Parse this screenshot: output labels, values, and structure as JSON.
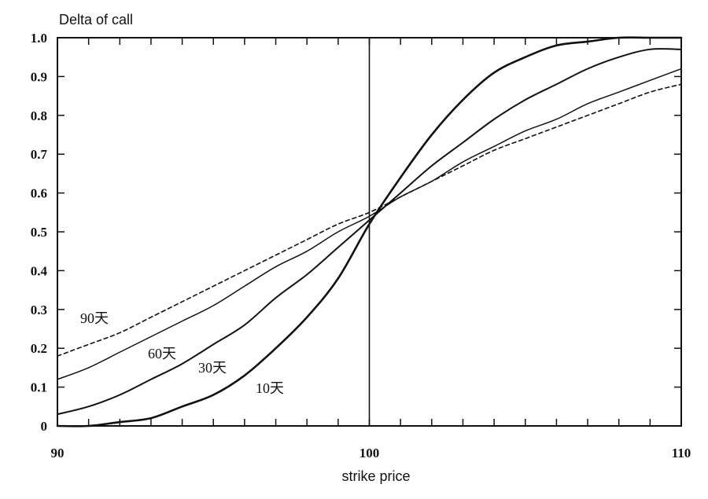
{
  "chart_data": {
    "type": "line",
    "ylabel": "Delta of call",
    "xlabel": "strike price",
    "xlim": [
      90,
      110
    ],
    "ylim": [
      0,
      1.0
    ],
    "x_tick_labels": [
      "90",
      "100",
      "110"
    ],
    "x_ticks_values": [
      90,
      100,
      110
    ],
    "y_tick_labels": [
      "0",
      "0.1",
      "0.2",
      "0.3",
      "0.4",
      "0.5",
      "0.6",
      "0.7",
      "0.8",
      "0.9",
      "1.0"
    ],
    "y_ticks_values": [
      0,
      0.1,
      0.2,
      0.3,
      0.4,
      0.5,
      0.6,
      0.7,
      0.8,
      0.9,
      1.0
    ],
    "minor_x_step": 1,
    "reference_line_x": 100,
    "grid": false,
    "x": [
      90,
      91,
      92,
      93,
      94,
      95,
      96,
      97,
      98,
      99,
      100,
      101,
      102,
      103,
      104,
      105,
      106,
      107,
      108,
      109,
      110
    ],
    "series": [
      {
        "name": "10天",
        "style": "solid-thick",
        "values": [
          0.0,
          0.0,
          0.01,
          0.02,
          0.05,
          0.08,
          0.13,
          0.2,
          0.28,
          0.38,
          0.52,
          0.64,
          0.75,
          0.84,
          0.91,
          0.95,
          0.98,
          0.99,
          1.0,
          1.0,
          1.0
        ]
      },
      {
        "name": "30天",
        "style": "solid",
        "values": [
          0.03,
          0.05,
          0.08,
          0.12,
          0.16,
          0.21,
          0.26,
          0.33,
          0.39,
          0.46,
          0.53,
          0.6,
          0.67,
          0.73,
          0.79,
          0.84,
          0.88,
          0.92,
          0.95,
          0.97,
          0.97
        ]
      },
      {
        "name": "60天",
        "style": "solid-thin",
        "values": [
          0.12,
          0.15,
          0.19,
          0.23,
          0.27,
          0.31,
          0.36,
          0.41,
          0.45,
          0.5,
          0.54,
          0.59,
          0.63,
          0.68,
          0.72,
          0.76,
          0.79,
          0.83,
          0.86,
          0.89,
          0.92
        ]
      },
      {
        "name": "90天",
        "style": "dashed",
        "values": [
          0.18,
          0.21,
          0.24,
          0.28,
          0.32,
          0.36,
          0.4,
          0.44,
          0.48,
          0.52,
          0.55,
          0.59,
          0.63,
          0.67,
          0.71,
          0.74,
          0.77,
          0.8,
          0.83,
          0.86,
          0.88
        ]
      }
    ]
  },
  "colors": {
    "line": "#111111",
    "background": "#ffffff"
  }
}
